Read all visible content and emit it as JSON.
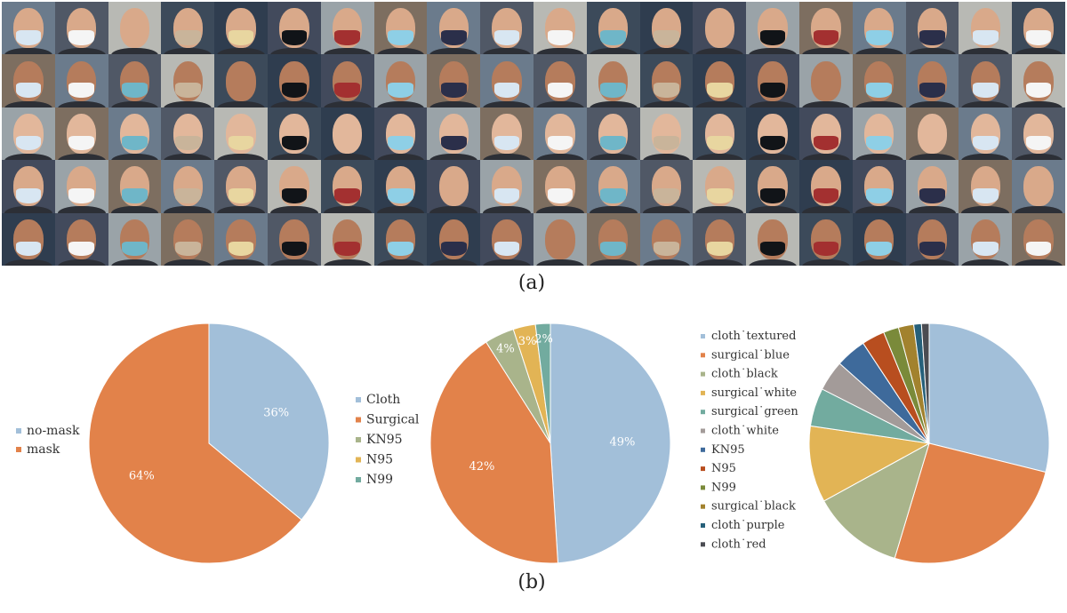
{
  "figure": {
    "caption_a": "(a)",
    "caption_b": "(b)"
  },
  "photo_grid": {
    "rows": 5,
    "cols": 20,
    "mask_colors": [
      "#d8e6f2",
      "#8ecfe6",
      "#111418",
      "#c9b49a",
      "#f5f5f5",
      "#2b2f4a",
      "#a33030",
      "#e8d6a0",
      "#6fb6c8"
    ],
    "skin_tones": [
      "#d9a98a",
      "#c98f6e",
      "#e2b79b",
      "#8a5a3e",
      "#b57c5c",
      "#eac4a8"
    ],
    "bg_colors": [
      "#6b7b8c",
      "#3c4a5a",
      "#9aa3a8",
      "#505866",
      "#2f3d4f",
      "#7d6e60",
      "#b8b9b4",
      "#424a5c"
    ]
  },
  "chart_data": [
    {
      "type": "pie",
      "legend_position": "left",
      "categories": [
        "no-mask",
        "mask"
      ],
      "values": [
        36,
        64
      ],
      "colors": [
        "#a2bfd9",
        "#e2824a"
      ],
      "labels": [
        "36%",
        "64%"
      ]
    },
    {
      "type": "pie",
      "legend_position": "left",
      "categories": [
        "Cloth",
        "Surgical",
        "KN95",
        "N95",
        "N99"
      ],
      "values": [
        49,
        42,
        4,
        3,
        2
      ],
      "colors": [
        "#a2bfd9",
        "#e2824a",
        "#a9b48b",
        "#e2b455",
        "#72ab9f"
      ],
      "labels": [
        "49%",
        "42%",
        "4%",
        "3%",
        "2%"
      ]
    },
    {
      "type": "pie",
      "legend_position": "left",
      "categories": [
        "cloth˙textured",
        "surgical˙blue",
        "cloth˙black",
        "surgical˙white",
        "surgical˙green",
        "cloth˙white",
        "KN95",
        "N95",
        "N99",
        "surgical˙black",
        "cloth˙purple",
        "cloth˙red"
      ],
      "values": [
        28,
        25,
        12,
        10,
        5,
        4,
        4,
        3,
        2,
        2,
        1,
        1
      ],
      "colors": [
        "#a2bfd9",
        "#e2824a",
        "#a9b48b",
        "#e2b455",
        "#72ab9f",
        "#a39b99",
        "#3e6a9b",
        "#b84e1f",
        "#7a8a3a",
        "#a2822e",
        "#26607a",
        "#4b4c52"
      ]
    }
  ]
}
